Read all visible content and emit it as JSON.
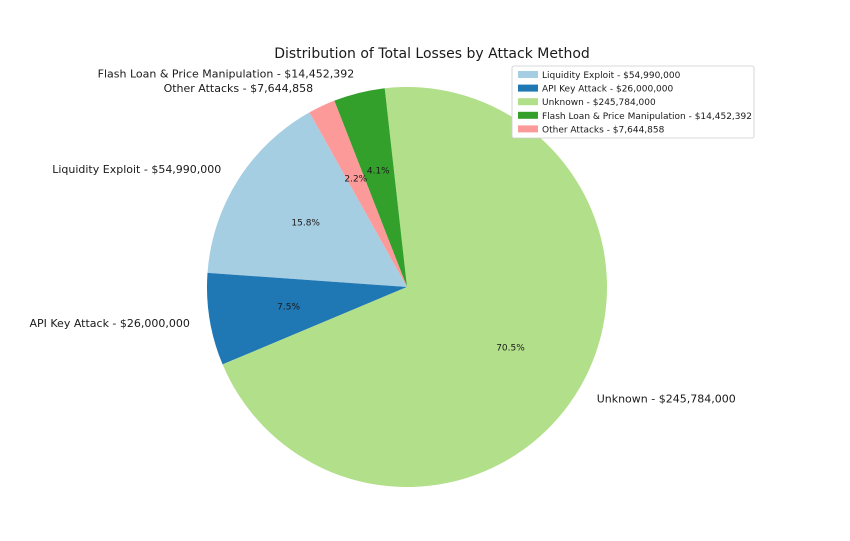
{
  "chart_data": {
    "type": "pie",
    "title": "Distribution of Total Losses by Attack Method",
    "legend_position": "top-right",
    "slices": [
      {
        "label": "Liquidity Exploit - $54,990,000",
        "value": 54990000,
        "pct": "15.8%",
        "color": "#a6cee3"
      },
      {
        "label": "API Key Attack - $26,000,000",
        "value": 26000000,
        "pct": "7.5%",
        "color": "#1f78b4"
      },
      {
        "label": "Unknown - $245,784,000",
        "value": 245784000,
        "pct": "70.5%",
        "color": "#b2df8a"
      },
      {
        "label": "Flash Loan & Price Manipulation - $14,452,392",
        "value": 14452392,
        "pct": "4.1%",
        "color": "#33a02c"
      },
      {
        "label": "Other Attacks - $7,644,858",
        "value": 7644858,
        "pct": "2.2%",
        "color": "#fb9a99"
      }
    ]
  }
}
